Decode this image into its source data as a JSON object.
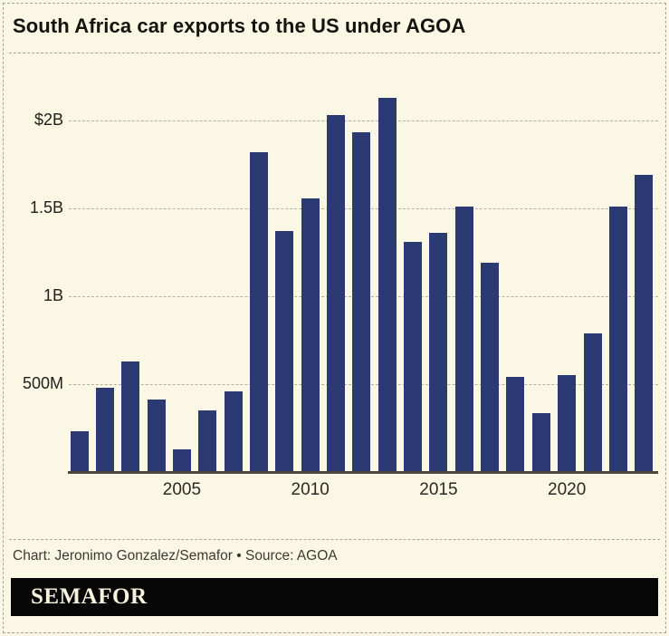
{
  "title": "South Africa car exports to the US under AGOA",
  "footer": {
    "credit": "Chart: Jeronimo Gonzalez/Semafor • Source: AGOA",
    "logo": "SEMAFOR"
  },
  "colors": {
    "background": "#faf7e4",
    "bar": "#2c3a74",
    "axis": "#4a473c",
    "gridline": "#b6b19e",
    "title_text": "#15130e",
    "tick_text": "#2c2a22",
    "caption_text": "#3c3a30",
    "logo_background": "#070707",
    "logo_text": "#f7f3de",
    "dashed_border": "#a9a595"
  },
  "chart_data": {
    "type": "bar",
    "title": "South Africa car exports to the US under AGOA",
    "unit": "USD (millions)",
    "x": [
      2001,
      2002,
      2003,
      2004,
      2005,
      2006,
      2007,
      2008,
      2009,
      2010,
      2011,
      2012,
      2013,
      2014,
      2015,
      2016,
      2017,
      2018,
      2019,
      2020,
      2021,
      2022,
      2023
    ],
    "values_musd": [
      230,
      480,
      630,
      415,
      130,
      350,
      460,
      1820,
      1370,
      1555,
      2030,
      1935,
      2130,
      1310,
      1360,
      1510,
      1190,
      540,
      335,
      550,
      790,
      1510,
      1690
    ],
    "y_ticks": [
      {
        "label": "$2B",
        "value": 2000
      },
      {
        "label": "1.5B",
        "value": 1500
      },
      {
        "label": "1B",
        "value": 1000
      },
      {
        "label": "500M",
        "value": 500
      }
    ],
    "x_ticks": [
      {
        "label": "2005",
        "year": 2005
      },
      {
        "label": "2010",
        "year": 2010
      },
      {
        "label": "2015",
        "year": 2015
      },
      {
        "label": "2020",
        "year": 2020
      }
    ],
    "ylim": [
      0,
      2320
    ],
    "xlabel": "",
    "ylabel": "",
    "grid": "horizontal-dashed",
    "legend": "none",
    "bar_color": "#2c3a74"
  }
}
